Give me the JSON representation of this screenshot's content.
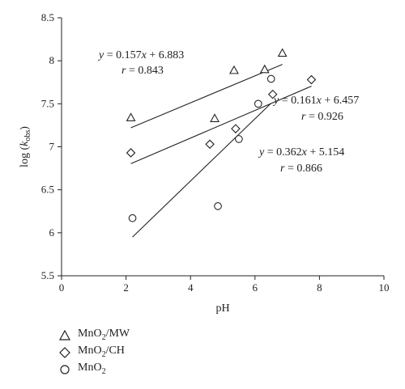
{
  "chart_data": {
    "type": "scatter",
    "xlabel": "pH",
    "ylabel": "log (k_obs)",
    "xlim": [
      0,
      10
    ],
    "ylim": [
      5.5,
      8.5
    ],
    "xticks": [
      "0",
      "2",
      "4",
      "6",
      "8",
      "10"
    ],
    "yticks": [
      "5.5",
      "6",
      "6.5",
      "7",
      "7.5",
      "8",
      "8.5"
    ],
    "grid": false,
    "legend_position": "bottom-left",
    "series": [
      {
        "name": "MnO2/MW",
        "marker": "triangle",
        "points": [
          [
            2.15,
            7.34
          ],
          [
            4.75,
            7.33
          ],
          [
            5.35,
            7.89
          ],
          [
            6.3,
            7.9
          ],
          [
            6.85,
            8.09
          ]
        ],
        "fit": {
          "x": [
            2.15,
            6.85
          ],
          "equation": "y = 0.157x + 6.883",
          "r": "r = 0.843"
        }
      },
      {
        "name": "MnO2/CH",
        "marker": "diamond",
        "points": [
          [
            2.15,
            6.93
          ],
          [
            4.6,
            7.03
          ],
          [
            5.4,
            7.21
          ],
          [
            6.55,
            7.61
          ],
          [
            7.75,
            7.78
          ]
        ],
        "fit": {
          "x": [
            2.15,
            7.75
          ],
          "equation": "y = 0.161x + 6.457",
          "r": "r = 0.926"
        }
      },
      {
        "name": "MnO2",
        "marker": "circle",
        "points": [
          [
            2.2,
            6.17
          ],
          [
            4.85,
            6.31
          ],
          [
            5.5,
            7.09
          ],
          [
            6.1,
            7.5
          ],
          [
            6.5,
            7.79
          ]
        ],
        "fit": {
          "x": [
            2.2,
            6.5
          ],
          "equation": "y = 0.362x + 5.154",
          "r": "r = 0.866"
        }
      }
    ]
  },
  "legend": [
    {
      "marker": "triangle",
      "main": "MnO",
      "sub": "2",
      "rest": "/MW"
    },
    {
      "marker": "diamond",
      "main": "MnO",
      "sub": "2",
      "rest": "/CH"
    },
    {
      "marker": "circle",
      "main": "MnO",
      "sub": "2",
      "rest": ""
    }
  ]
}
